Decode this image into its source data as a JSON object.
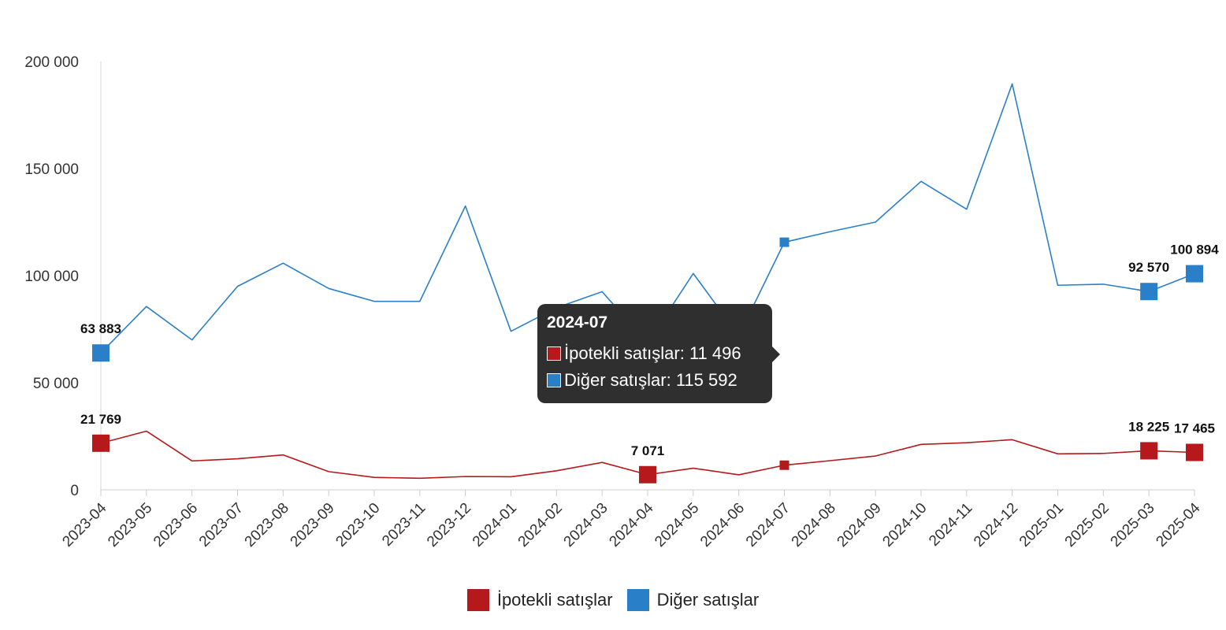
{
  "chart_data": {
    "type": "line",
    "categories": [
      "2023-04",
      "2023-05",
      "2023-06",
      "2023-07",
      "2023-08",
      "2023-09",
      "2023-10",
      "2023-11",
      "2023-12",
      "2024-01",
      "2024-02",
      "2024-03",
      "2024-04",
      "2024-05",
      "2024-06",
      "2024-07",
      "2024-08",
      "2024-09",
      "2024-10",
      "2024-11",
      "2024-12",
      "2025-01",
      "2025-02",
      "2025-03",
      "2025-04"
    ],
    "ylim": [
      0,
      200000
    ],
    "yticks": [
      0,
      50000,
      100000,
      150000,
      200000
    ],
    "ytick_labels": [
      "0",
      "50 000",
      "100 000",
      "150 000",
      "200 000"
    ],
    "grid": false,
    "legend_position": "bottom",
    "series": [
      {
        "name": "İpotekli satışlar",
        "color": "#b5191b",
        "values": [
          21769,
          27400,
          13500,
          14500,
          16300,
          8500,
          5800,
          5400,
          6200,
          6100,
          8900,
          12800,
          7071,
          10100,
          7000,
          11496,
          13600,
          15800,
          21200,
          22000,
          23400,
          16800,
          17000,
          18225,
          17465
        ],
        "labeled": {
          "0": "21 769",
          "12": "7 071",
          "23": "18 225",
          "24": "17 465"
        }
      },
      {
        "name": "Diğer satışlar",
        "color": "#2a7fc9",
        "values": [
          63883,
          85600,
          70000,
          95000,
          105800,
          94000,
          88000,
          88000,
          132500,
          74000,
          85000,
          92500,
          68498,
          101000,
          72000,
          115592,
          120500,
          125000,
          144000,
          131000,
          189500,
          95500,
          96000,
          92570,
          100894
        ],
        "labeled": {
          "0": "63 883",
          "12": "68 498",
          "23": "92 570",
          "24": "100 894"
        }
      }
    ]
  },
  "tooltip": {
    "title": "2024-07",
    "rows": [
      {
        "label": "İpotekli satışlar: 11 496",
        "color": "#b5191b"
      },
      {
        "label": "Diğer satışlar: 115 592",
        "color": "#2a7fc9"
      }
    ]
  },
  "legend": [
    {
      "label": "İpotekli satışlar",
      "color": "#b5191b"
    },
    {
      "label": "Diğer satışlar",
      "color": "#2a7fc9"
    }
  ]
}
